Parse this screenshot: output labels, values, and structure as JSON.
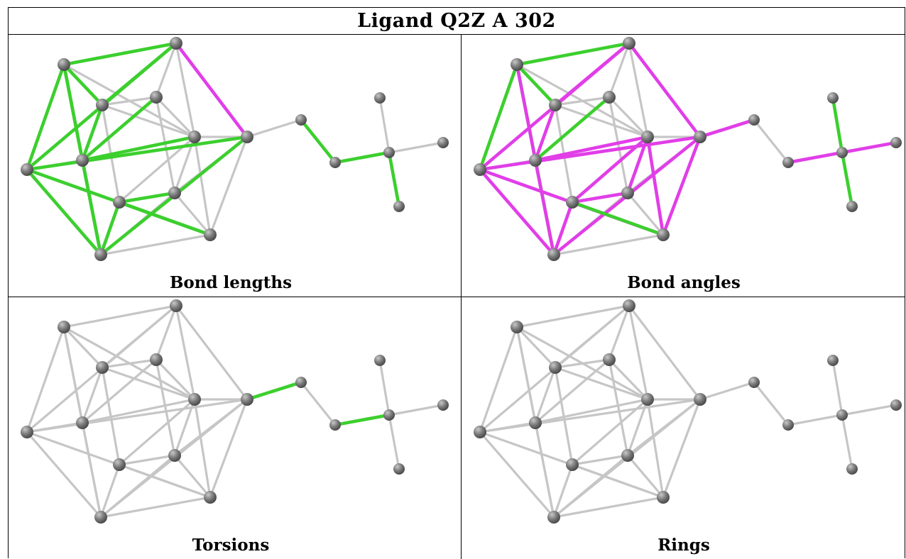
{
  "title": "Ligand Q2Z A 302",
  "colors": {
    "neutral": "#c6c6c6",
    "green": "#3ccf2e",
    "magenta": "#e13ee8",
    "atom": "#7a7a7a"
  },
  "nodes": [
    {
      "id": "c1"
    },
    {
      "id": "c2"
    },
    {
      "id": "c3"
    },
    {
      "id": "c4"
    },
    {
      "id": "c5"
    },
    {
      "id": "c6"
    },
    {
      "id": "c7"
    },
    {
      "id": "c8"
    },
    {
      "id": "c9"
    },
    {
      "id": "c10"
    },
    {
      "id": "c11"
    },
    {
      "id": "c12"
    },
    {
      "id": "l1"
    },
    {
      "id": "l2"
    },
    {
      "id": "q"
    },
    {
      "id": "m1"
    },
    {
      "id": "m2"
    },
    {
      "id": "m3"
    }
  ],
  "panels": [
    {
      "caption": "Bond lengths",
      "green": [
        "c1-c2",
        "c1-c3",
        "c1-c4",
        "c1-c6",
        "c1-c5",
        "c2-c3",
        "c2-c4",
        "c3-c6",
        "c3-c7",
        "c3-c9",
        "c4-c5",
        "c5-c6",
        "c5-c8",
        "c5-c12",
        "c6-c7",
        "c6-c10",
        "c9-c10",
        "c10-c11",
        "l1-l2",
        "l2-q",
        "q-m2"
      ],
      "magenta": [
        "c2-c7",
        "c6-c12"
      ]
    },
    {
      "caption": "Bond angles",
      "green": [
        "c1-c2",
        "c1-c3",
        "c1-c4",
        "c1-c6",
        "c5-c8",
        "c9-c10",
        "q-m1",
        "q-m2"
      ],
      "magenta": [
        "c1-c5",
        "c2-c3",
        "c2-c4",
        "c2-c7",
        "c3-c6",
        "c3-c7",
        "c3-c9",
        "c4-c5",
        "c5-c6",
        "c5-c12",
        "c6-c7",
        "c6-c10",
        "c10-c11",
        "c7-l1",
        "c7-c9",
        "c9-c12",
        "c10-c12",
        "c11-c12",
        "c11-c8",
        "c12-c8",
        "l2-q",
        "q-m3"
      ]
    },
    {
      "caption": "Torsions",
      "green": [
        "c7-l1",
        "l2-q"
      ],
      "magenta": []
    },
    {
      "caption": "Rings",
      "green": [],
      "magenta": []
    }
  ]
}
